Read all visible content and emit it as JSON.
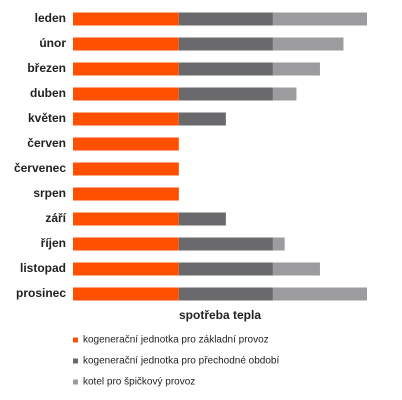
{
  "chart_data": {
    "type": "stacked-bar-horizontal",
    "x_label": "spotřeba tepla",
    "categories": [
      "leden",
      "únor",
      "březen",
      "duben",
      "květen",
      "červen",
      "červenec",
      "srpen",
      "září",
      "říjen",
      "listopad",
      "prosinec"
    ],
    "series": [
      {
        "name": "kogenerační jednotka pro základní provoz",
        "color": "#ff4f00",
        "values": [
          9,
          9,
          9,
          9,
          9,
          9,
          9,
          9,
          9,
          9,
          9,
          9
        ]
      },
      {
        "name": "kogenerační jednotka pro přechodné období",
        "color": "#6a6a6c",
        "values": [
          8,
          8,
          8,
          8,
          4,
          0,
          0,
          0,
          4,
          8,
          8,
          8
        ]
      },
      {
        "name": "kotel pro špičkový provoz",
        "color": "#9c9c9e",
        "values": [
          8,
          6,
          4,
          2,
          0,
          0,
          0,
          0,
          0,
          1,
          4,
          8
        ]
      }
    ]
  }
}
